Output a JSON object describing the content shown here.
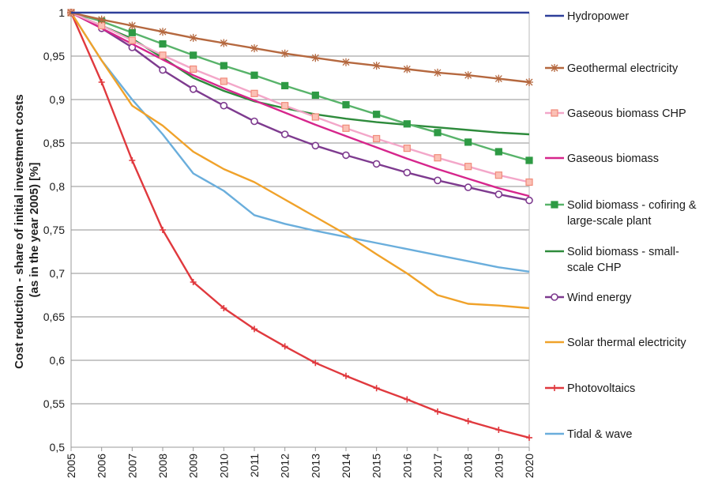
{
  "chart_data": {
    "type": "line",
    "title": "",
    "xlabel": "",
    "ylabel_lines": [
      "Cost reduction - share of initial investment costs",
      "(as in the year 2005) [%]"
    ],
    "x": [
      "2005",
      "2006",
      "2007",
      "2008",
      "2009",
      "2010",
      "2011",
      "2012",
      "2013",
      "2014",
      "2015",
      "2016",
      "2017",
      "2018",
      "2019",
      "2020"
    ],
    "ylim": [
      0.5,
      1
    ],
    "y_ticks": [
      "0,5",
      "0,55",
      "0,6",
      "0,65",
      "0,7",
      "0,75",
      "0,8",
      "0,85",
      "0,9",
      "0,95",
      "1"
    ],
    "grid": true,
    "legend_position": "right",
    "series": [
      {
        "name": "Hydropower",
        "legend_lines": [
          "Hydropower"
        ],
        "color": "#2e3f9a",
        "marker": "none",
        "values": [
          1,
          1,
          1,
          1,
          1,
          1,
          1,
          1,
          1,
          1,
          1,
          1,
          1,
          1,
          1,
          1
        ]
      },
      {
        "name": "Geothermal electricity",
        "legend_lines": [
          "Geothermal electricity"
        ],
        "color": "#b5683f",
        "marker": "star",
        "values": [
          1,
          0.992,
          0.985,
          0.978,
          0.971,
          0.965,
          0.959,
          0.953,
          0.948,
          0.943,
          0.939,
          0.935,
          0.931,
          0.928,
          0.924,
          0.92
        ]
      },
      {
        "name": "Gaseous biomass CHP",
        "legend_lines": [
          "Gaseous biomass CHP"
        ],
        "color": "#f3a7c9",
        "marker": "square",
        "marker_color": "#f08a7a",
        "values": [
          1,
          0.985,
          0.968,
          0.951,
          0.935,
          0.921,
          0.907,
          0.893,
          0.88,
          0.867,
          0.855,
          0.844,
          0.833,
          0.823,
          0.813,
          0.805
        ]
      },
      {
        "name": "Gaseous biomass",
        "legend_lines": [
          "Gaseous biomass"
        ],
        "color": "#d6268c",
        "marker": "none",
        "values": [
          1,
          0.982,
          0.964,
          0.946,
          0.928,
          0.913,
          0.899,
          0.885,
          0.871,
          0.858,
          0.845,
          0.832,
          0.82,
          0.809,
          0.798,
          0.789
        ]
      },
      {
        "name": "Solid biomass - cofiring & large-scale plant",
        "legend_lines": [
          "Solid biomass - cofiring &",
          "large-scale plant"
        ],
        "color": "#58b36a",
        "marker": "square",
        "marker_color": "#2e9a44",
        "values": [
          1,
          0.99,
          0.977,
          0.964,
          0.951,
          0.939,
          0.928,
          0.916,
          0.905,
          0.894,
          0.883,
          0.872,
          0.862,
          0.851,
          0.84,
          0.83
        ]
      },
      {
        "name": "Solid biomass - small-scale CHP",
        "legend_lines": [
          "Solid biomass - small-",
          "scale CHP"
        ],
        "color": "#2e8b3c",
        "marker": "none",
        "values": [
          1,
          0.985,
          0.97,
          0.948,
          0.925,
          0.91,
          0.898,
          0.89,
          0.883,
          0.878,
          0.874,
          0.871,
          0.868,
          0.865,
          0.862,
          0.86
        ]
      },
      {
        "name": "Wind energy",
        "legend_lines": [
          "Wind energy"
        ],
        "color": "#7e3b8f",
        "marker": "circle",
        "values": [
          1,
          0.982,
          0.96,
          0.934,
          0.912,
          0.893,
          0.875,
          0.86,
          0.847,
          0.836,
          0.826,
          0.816,
          0.807,
          0.799,
          0.791,
          0.784
        ]
      },
      {
        "name": "Solar thermal electricity",
        "legend_lines": [
          "Solar thermal electricity"
        ],
        "color": "#f0a22a",
        "marker": "none",
        "values": [
          1,
          0.945,
          0.893,
          0.87,
          0.84,
          0.82,
          0.805,
          0.785,
          0.765,
          0.745,
          0.722,
          0.7,
          0.675,
          0.665,
          0.663,
          0.66
        ]
      },
      {
        "name": "Photovoltaics",
        "legend_lines": [
          "Photovoltaics"
        ],
        "color": "#e0393e",
        "marker": "plus",
        "values": [
          1,
          0.92,
          0.83,
          0.75,
          0.69,
          0.66,
          0.636,
          0.616,
          0.597,
          0.582,
          0.568,
          0.555,
          0.541,
          0.53,
          0.52,
          0.511
        ]
      },
      {
        "name": "Tidal & wave",
        "legend_lines": [
          "Tidal & wave"
        ],
        "color": "#6aaedc",
        "marker": "none",
        "values": [
          1,
          0.945,
          0.9,
          0.86,
          0.815,
          0.795,
          0.767,
          0.757,
          0.749,
          0.742,
          0.735,
          0.728,
          0.721,
          0.714,
          0.707,
          0.702
        ]
      }
    ]
  }
}
